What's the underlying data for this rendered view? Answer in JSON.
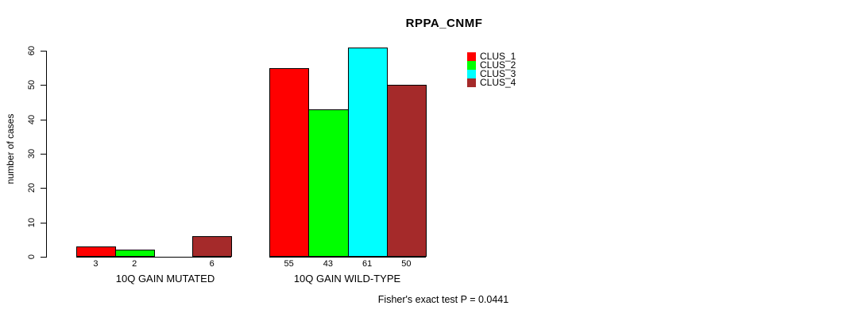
{
  "chart_data": {
    "type": "bar",
    "title": "RPPA_CNMF",
    "xlabel": "",
    "ylabel": "number of cases",
    "ylim": [
      0,
      60
    ],
    "yticks": [
      0,
      10,
      20,
      30,
      40,
      50,
      60
    ],
    "grid": false,
    "legend_position": "top-right-inside",
    "series": [
      {
        "name": "CLUS_1",
        "color": "#FF0000"
      },
      {
        "name": "CLUS_2",
        "color": "#00FF00"
      },
      {
        "name": "CLUS_3",
        "color": "#00FFFF"
      },
      {
        "name": "CLUS_4",
        "color": "#A52A2A"
      }
    ],
    "groups": [
      {
        "label": "10Q GAIN MUTATED",
        "values": [
          3,
          2,
          0,
          6
        ],
        "bar_labels": [
          "3",
          "2",
          "",
          "6"
        ]
      },
      {
        "label": "10Q GAIN WILD-TYPE",
        "values": [
          55,
          43,
          61,
          50
        ],
        "bar_labels": [
          "55",
          "43",
          "61",
          "50"
        ]
      }
    ],
    "annotation": "Fisher's exact test P = 0.0441"
  }
}
